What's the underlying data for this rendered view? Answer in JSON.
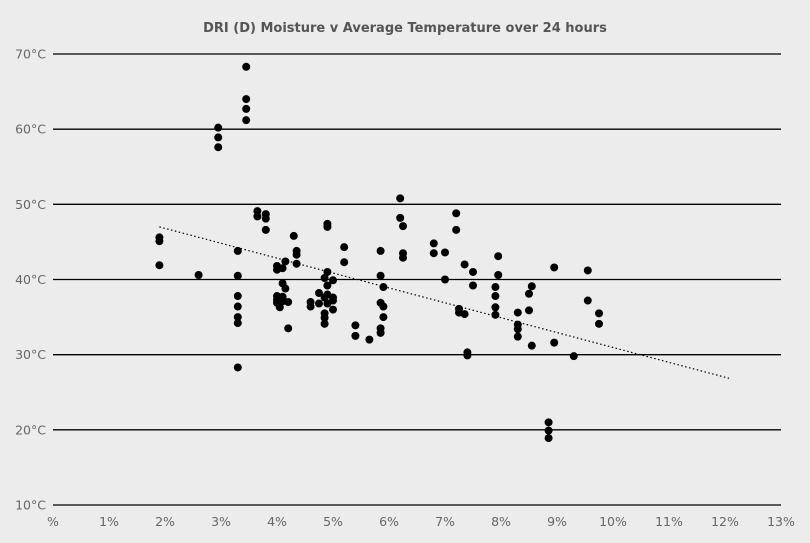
{
  "chart_data": {
    "type": "scatter",
    "title": "DRI (D) Moisture v Average Temperature over 24 hours",
    "xlabel": "",
    "ylabel": "",
    "xlim": [
      0,
      13
    ],
    "ylim": [
      10,
      70
    ],
    "x_tick_labels": [
      "%",
      "1%",
      "2%",
      "3%",
      "4%",
      "5%",
      "6%",
      "7%",
      "8%",
      "9%",
      "10%",
      "11%",
      "12%",
      "13%"
    ],
    "y_tick_labels": [
      "10°C",
      "20°C",
      "30°C",
      "40°C",
      "50°C",
      "60°C",
      "70°C"
    ],
    "grid": "horizontal",
    "legend": "none",
    "trendline": {
      "style": "dotted",
      "from": [
        1.9,
        47
      ],
      "to": [
        12.1,
        26.8
      ]
    },
    "colors": {
      "background": "#ececed",
      "points": "#000000",
      "grid": "#000000",
      "text": "#666666"
    },
    "series": [
      {
        "points": [
          [
            1.9,
            45.6
          ],
          [
            1.9,
            45.1
          ],
          [
            1.9,
            41.9
          ],
          [
            2.6,
            40.6
          ],
          [
            2.95,
            60.2
          ],
          [
            2.95,
            58.9
          ],
          [
            2.95,
            57.6
          ],
          [
            3.3,
            43.8
          ],
          [
            3.3,
            40.5
          ],
          [
            3.3,
            37.8
          ],
          [
            3.3,
            36.4
          ],
          [
            3.3,
            35.0
          ],
          [
            3.3,
            34.2
          ],
          [
            3.3,
            28.3
          ],
          [
            3.45,
            68.3
          ],
          [
            3.45,
            64.0
          ],
          [
            3.45,
            62.7
          ],
          [
            3.45,
            61.2
          ],
          [
            3.65,
            49.1
          ],
          [
            3.65,
            48.4
          ],
          [
            3.8,
            48.7
          ],
          [
            3.8,
            48.1
          ],
          [
            3.8,
            46.6
          ],
          [
            4.0,
            41.8
          ],
          [
            4.0,
            41.3
          ],
          [
            4.0,
            37.8
          ],
          [
            4.0,
            37.3
          ],
          [
            4.0,
            36.9
          ],
          [
            4.05,
            36.3
          ],
          [
            4.1,
            41.5
          ],
          [
            4.1,
            39.5
          ],
          [
            4.1,
            37.7
          ],
          [
            4.1,
            37.1
          ],
          [
            4.15,
            42.4
          ],
          [
            4.15,
            38.8
          ],
          [
            4.2,
            37.0
          ],
          [
            4.2,
            33.5
          ],
          [
            4.3,
            45.8
          ],
          [
            4.35,
            43.8
          ],
          [
            4.35,
            43.3
          ],
          [
            4.35,
            42.1
          ],
          [
            4.6,
            37.0
          ],
          [
            4.6,
            36.4
          ],
          [
            4.75,
            38.2
          ],
          [
            4.75,
            36.8
          ],
          [
            4.85,
            40.2
          ],
          [
            4.85,
            37.6
          ],
          [
            4.85,
            35.5
          ],
          [
            4.85,
            34.9
          ],
          [
            4.85,
            34.1
          ],
          [
            4.9,
            47.4
          ],
          [
            4.9,
            47.0
          ],
          [
            4.9,
            41.0
          ],
          [
            4.9,
            39.2
          ],
          [
            4.9,
            38.0
          ],
          [
            4.9,
            36.8
          ],
          [
            5.0,
            39.9
          ],
          [
            5.0,
            37.6
          ],
          [
            5.0,
            37.2
          ],
          [
            5.0,
            36.0
          ],
          [
            5.2,
            44.3
          ],
          [
            5.2,
            42.3
          ],
          [
            5.4,
            33.9
          ],
          [
            5.4,
            32.5
          ],
          [
            5.65,
            32.0
          ],
          [
            5.85,
            43.8
          ],
          [
            5.85,
            40.5
          ],
          [
            5.85,
            36.9
          ],
          [
            5.85,
            33.5
          ],
          [
            5.85,
            32.9
          ],
          [
            5.9,
            39.0
          ],
          [
            5.9,
            36.4
          ],
          [
            5.9,
            35.0
          ],
          [
            6.2,
            50.8
          ],
          [
            6.2,
            48.2
          ],
          [
            6.25,
            47.1
          ],
          [
            6.25,
            43.5
          ],
          [
            6.25,
            42.9
          ],
          [
            6.8,
            44.8
          ],
          [
            6.8,
            43.5
          ],
          [
            7.0,
            43.6
          ],
          [
            7.0,
            40.0
          ],
          [
            7.2,
            48.8
          ],
          [
            7.2,
            46.6
          ],
          [
            7.25,
            36.1
          ],
          [
            7.25,
            35.6
          ],
          [
            7.35,
            42.0
          ],
          [
            7.35,
            35.4
          ],
          [
            7.4,
            30.3
          ],
          [
            7.4,
            29.9
          ],
          [
            7.5,
            41.0
          ],
          [
            7.5,
            39.2
          ],
          [
            7.9,
            39.0
          ],
          [
            7.9,
            37.8
          ],
          [
            7.9,
            36.3
          ],
          [
            7.9,
            35.3
          ],
          [
            7.95,
            43.1
          ],
          [
            7.95,
            40.6
          ],
          [
            8.3,
            35.6
          ],
          [
            8.3,
            34.0
          ],
          [
            8.3,
            33.4
          ],
          [
            8.3,
            32.4
          ],
          [
            8.5,
            38.1
          ],
          [
            8.5,
            35.9
          ],
          [
            8.55,
            39.1
          ],
          [
            8.55,
            31.2
          ],
          [
            8.85,
            21.0
          ],
          [
            8.85,
            19.9
          ],
          [
            8.85,
            18.9
          ],
          [
            8.95,
            41.6
          ],
          [
            8.95,
            31.6
          ],
          [
            9.3,
            29.8
          ],
          [
            9.55,
            41.2
          ],
          [
            9.55,
            37.2
          ],
          [
            9.75,
            35.5
          ],
          [
            9.75,
            34.1
          ]
        ]
      }
    ]
  }
}
